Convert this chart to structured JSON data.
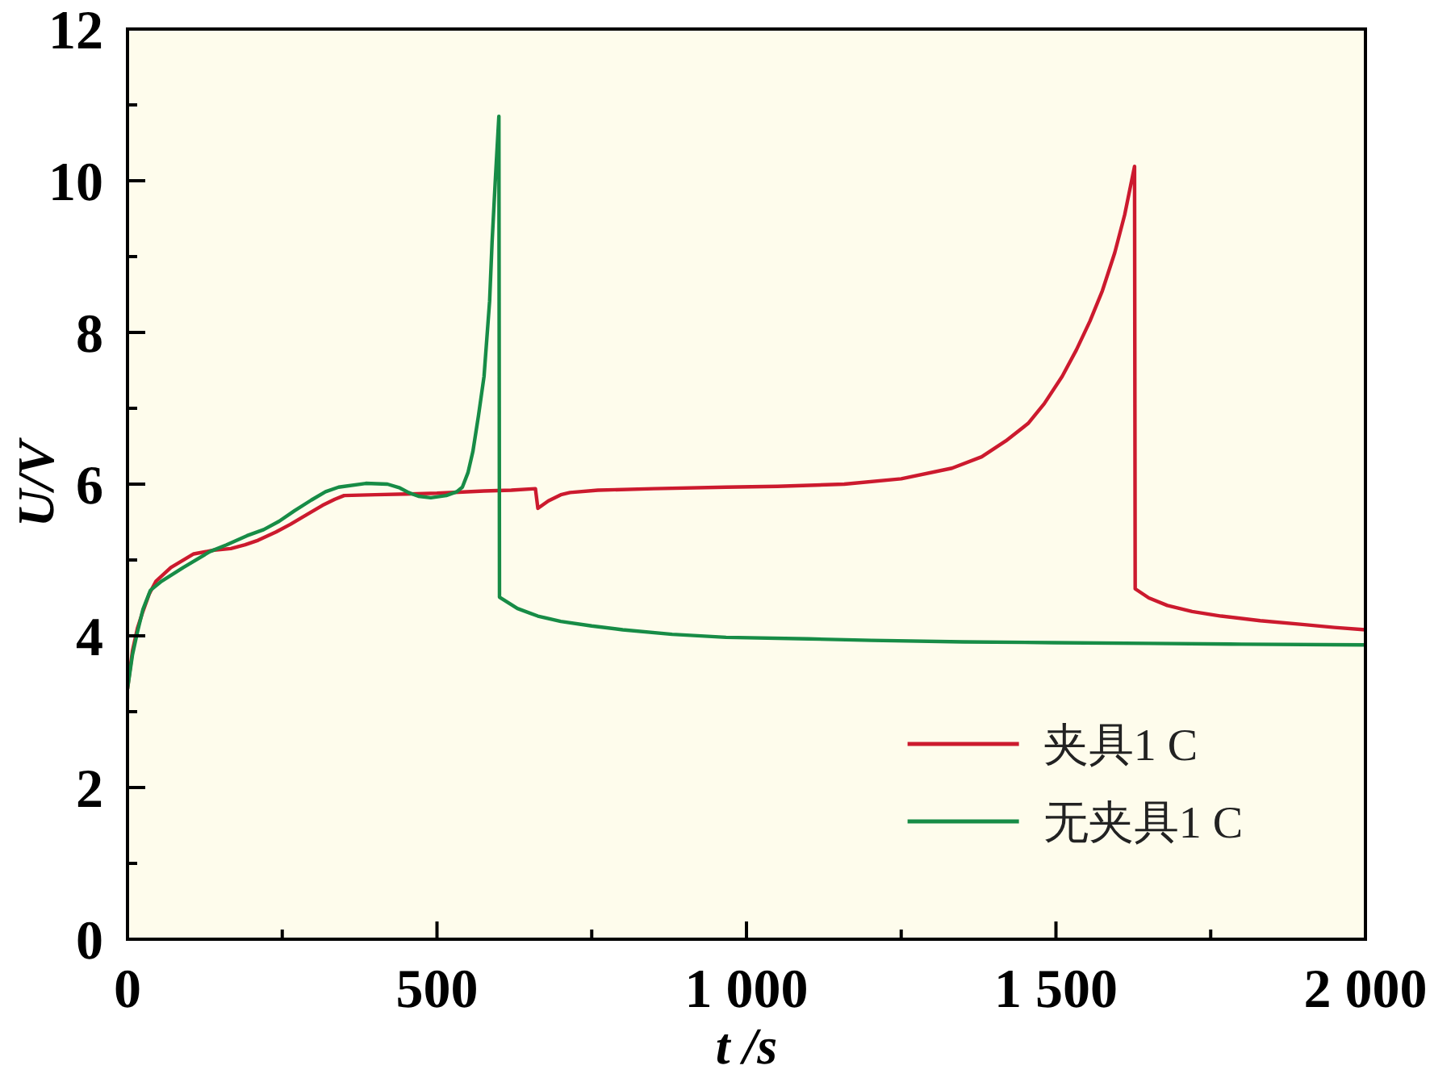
{
  "chart_data": {
    "type": "line",
    "xlabel": "t /s",
    "ylabel": "U/V",
    "xlim": [
      0,
      2000
    ],
    "ylim": [
      0,
      12
    ],
    "xticks": [
      0,
      {
        "value": 250,
        "label": null
      },
      500,
      {
        "value": 750,
        "label": null
      },
      {
        "value": 1000,
        "label": "1 000"
      },
      {
        "value": 1250,
        "label": null
      },
      {
        "value": 1500,
        "label": "1 500"
      },
      {
        "value": 1750,
        "label": null
      },
      {
        "value": 2000,
        "label": "2 000"
      }
    ],
    "yticks": [
      0,
      {
        "value": 1,
        "label": null
      },
      2,
      {
        "value": 3,
        "label": null
      },
      4,
      {
        "value": 5,
        "label": null
      },
      6,
      {
        "value": 7,
        "label": null
      },
      8,
      {
        "value": 9,
        "label": null
      },
      10,
      {
        "value": 11,
        "label": null
      },
      12
    ],
    "legend": "bottom right",
    "line_style": "solid",
    "series": [
      {
        "name": "夹具1 C",
        "color": "#cc1a2e",
        "x": [
          0,
          8,
          16,
          24,
          35,
          46,
          70,
          107,
          140,
          167,
          190,
          211,
          240,
          263,
          290,
          315,
          335,
          350,
          400,
          450,
          500,
          576,
          620,
          659,
          663,
          680,
          700,
          715,
          760,
          850,
          967,
          1050,
          1158,
          1250,
          1332,
          1380,
          1419,
          1455,
          1481,
          1510,
          1533,
          1555,
          1575,
          1595,
          1611,
          1627,
          1628,
          1650,
          1680,
          1720,
          1767,
          1830,
          1898,
          1950,
          2000
        ],
        "values": [
          3.3,
          3.8,
          4.1,
          4.3,
          4.55,
          4.72,
          4.9,
          5.08,
          5.13,
          5.15,
          5.2,
          5.26,
          5.37,
          5.47,
          5.6,
          5.72,
          5.8,
          5.85,
          5.86,
          5.87,
          5.88,
          5.91,
          5.92,
          5.94,
          5.68,
          5.78,
          5.86,
          5.89,
          5.92,
          5.94,
          5.96,
          5.97,
          6.0,
          6.07,
          6.21,
          6.36,
          6.57,
          6.8,
          7.06,
          7.42,
          7.77,
          8.15,
          8.55,
          9.05,
          9.55,
          10.19,
          4.62,
          4.5,
          4.4,
          4.32,
          4.26,
          4.2,
          4.15,
          4.11,
          4.08
        ]
      },
      {
        "name": "无夹具1 C",
        "color": "#178c46",
        "x": [
          0,
          8,
          16,
          25,
          37,
          55,
          90,
          133,
          160,
          193,
          220,
          245,
          270,
          297,
          320,
          341,
          385,
          420,
          440,
          454,
          470,
          490,
          515,
          532,
          541,
          550,
          558,
          567,
          576,
          585,
          589,
          594,
          600,
          601,
          630,
          663,
          700,
          750,
          800,
          880,
          967,
          1100,
          1202,
          1350,
          1497,
          1650,
          1800,
          2000
        ],
        "values": [
          3.3,
          3.75,
          4.05,
          4.35,
          4.6,
          4.72,
          4.9,
          5.11,
          5.2,
          5.32,
          5.4,
          5.51,
          5.65,
          5.79,
          5.9,
          5.96,
          6.01,
          6.0,
          5.95,
          5.89,
          5.84,
          5.82,
          5.85,
          5.9,
          5.96,
          6.15,
          6.43,
          6.9,
          7.42,
          8.41,
          9.19,
          9.97,
          10.85,
          4.51,
          4.36,
          4.26,
          4.19,
          4.13,
          4.08,
          4.02,
          3.98,
          3.96,
          3.94,
          3.92,
          3.91,
          3.9,
          3.89,
          3.88
        ]
      }
    ]
  }
}
